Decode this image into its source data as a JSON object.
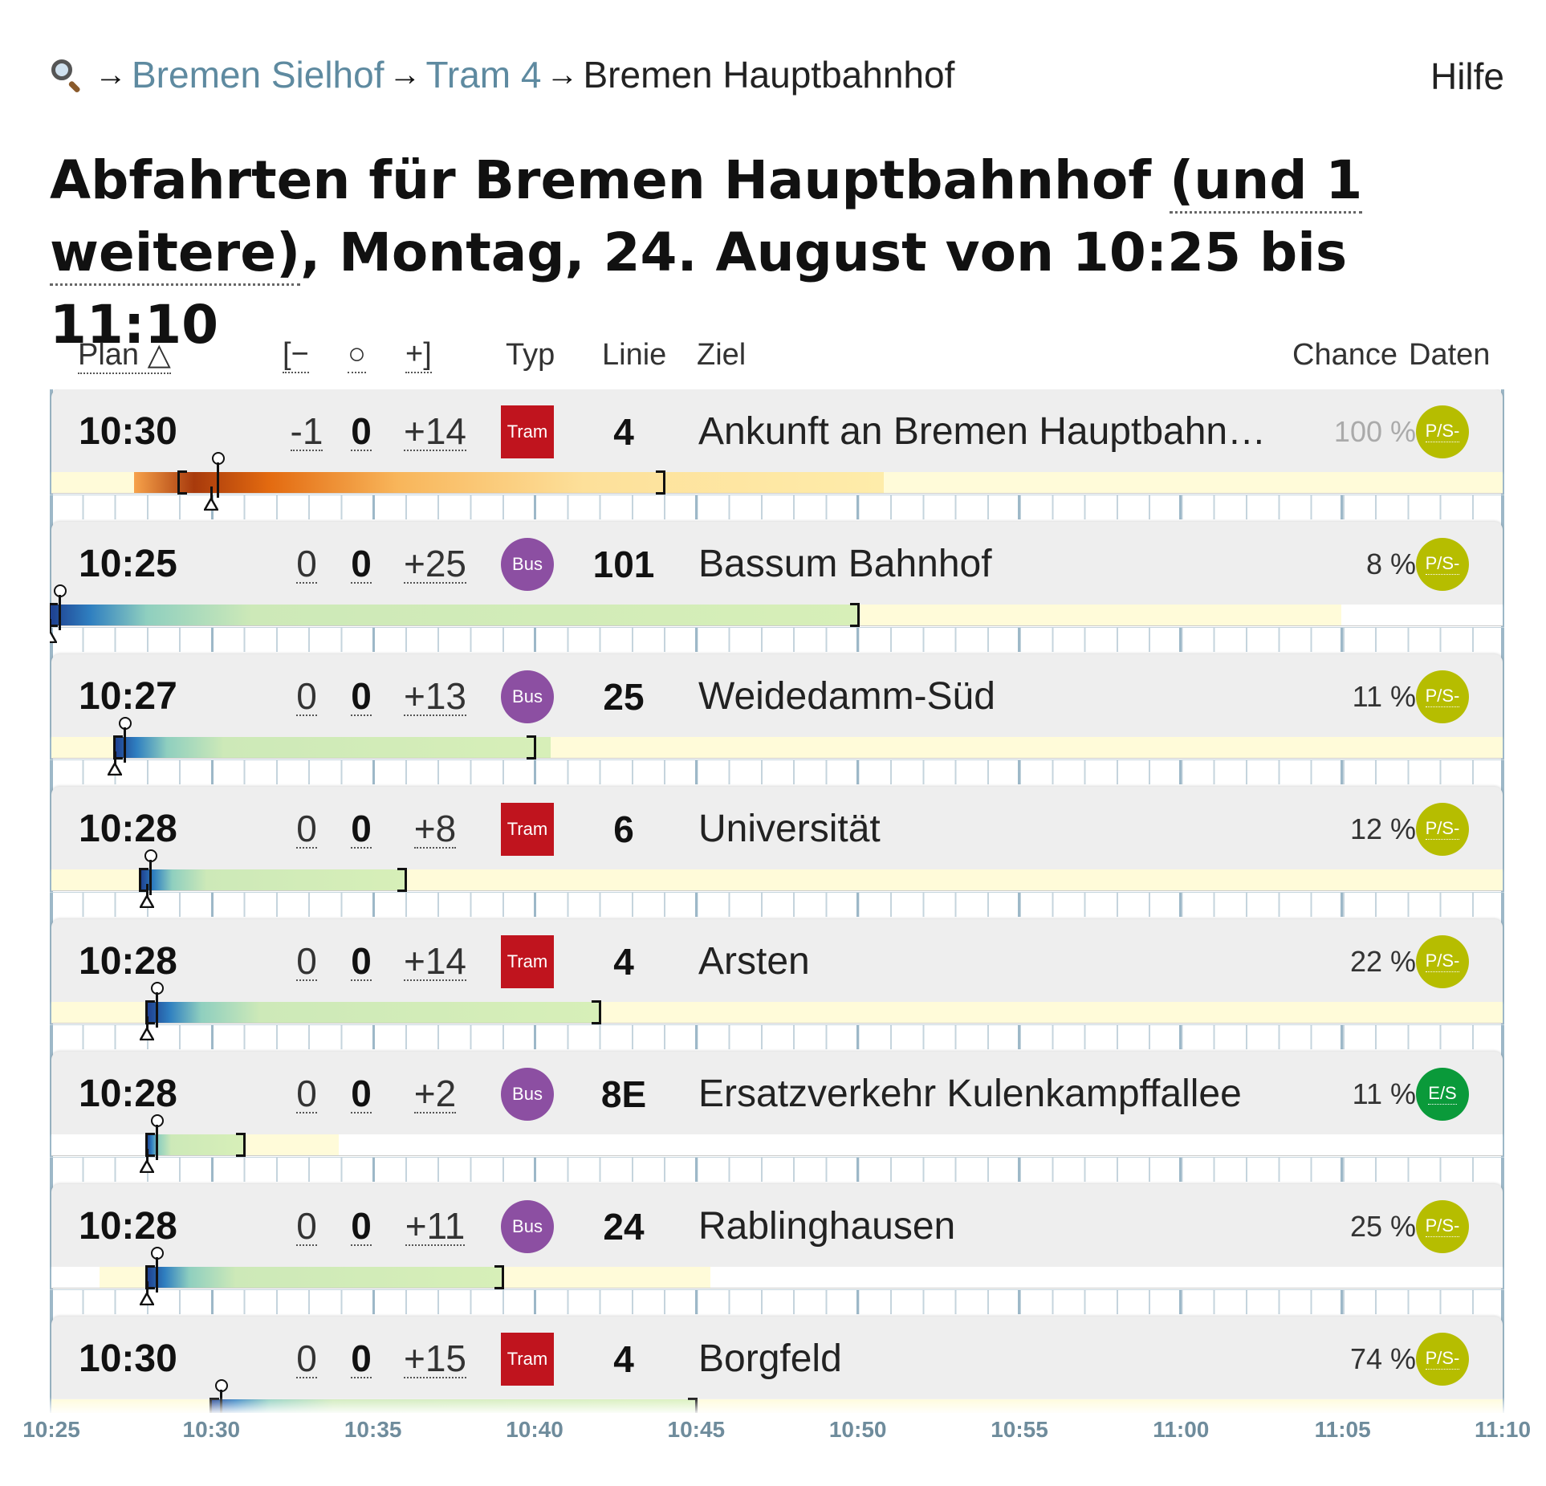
{
  "breadcrumb": {
    "items": [
      {
        "label": "Bremen Sielhof",
        "link": true
      },
      {
        "label": "Tram 4",
        "link": true
      },
      {
        "label": "Bremen Hauptbahnhof",
        "link": false
      }
    ],
    "arrow": "→",
    "help": "Hilfe"
  },
  "title": {
    "prefix": "Abfahrten für Bremen Hauptbahnhof ",
    "more_link": "(und 1 weitere)",
    "suffix": ", Montag, 24. August von 10:25 bis 11:10"
  },
  "columns": {
    "plan": "Plan △",
    "minus": "[−",
    "zero": "○",
    "plus": "+]",
    "typ": "Typ",
    "linie": "Linie",
    "ziel": "Ziel",
    "chance": "Chance",
    "daten": "Daten"
  },
  "rows": [
    {
      "plan": "10:30",
      "minus": "-1",
      "zero": "0",
      "plus": "+14",
      "type": "Tram",
      "line": "4",
      "dest": "Ankunft an Bremen Hauptbahnhof",
      "chance": "100 %",
      "data": "P/S-",
      "dataColor": "#b6bd00"
    },
    {
      "plan": "10:25",
      "minus": "0",
      "zero": "0",
      "plus": "+25",
      "type": "Bus",
      "line": "101",
      "dest": "Bassum Bahnhof",
      "chance": "8 %",
      "data": "P/S-",
      "dataColor": "#b6bd00"
    },
    {
      "plan": "10:27",
      "minus": "0",
      "zero": "0",
      "plus": "+13",
      "type": "Bus",
      "line": "25",
      "dest": "Weidedamm-Süd",
      "chance": "11 %",
      "data": "P/S-",
      "dataColor": "#b6bd00"
    },
    {
      "plan": "10:28",
      "minus": "0",
      "zero": "0",
      "plus": "+8",
      "type": "Tram",
      "line": "6",
      "dest": "Universität",
      "chance": "12 %",
      "data": "P/S-",
      "dataColor": "#b6bd00"
    },
    {
      "plan": "10:28",
      "minus": "0",
      "zero": "0",
      "plus": "+14",
      "type": "Tram",
      "line": "4",
      "dest": "Arsten",
      "chance": "22 %",
      "data": "P/S-",
      "dataColor": "#b6bd00"
    },
    {
      "plan": "10:28",
      "minus": "0",
      "zero": "0",
      "plus": "+2",
      "type": "Bus",
      "line": "8E",
      "dest": "Ersatzverkehr Kulenkampffallee",
      "chance": "11 %",
      "data": "E/S",
      "dataColor": "#0a9a3a"
    },
    {
      "plan": "10:28",
      "minus": "0",
      "zero": "0",
      "plus": "+11",
      "type": "Bus",
      "line": "24",
      "dest": "Rablinghausen",
      "chance": "25 %",
      "data": "P/S-",
      "dataColor": "#b6bd00"
    },
    {
      "plan": "10:30",
      "minus": "0",
      "zero": "0",
      "plus": "+15",
      "type": "Tram",
      "line": "4",
      "dest": "Borgfeld",
      "chance": "74 %",
      "data": "P/S-",
      "dataColor": "#b6bd00"
    }
  ],
  "axis": [
    "10:25",
    "10:30",
    "10:35",
    "10:40",
    "10:45",
    "10:50",
    "10:55",
    "11:00",
    "11:05",
    "11:10"
  ],
  "colors": {
    "link": "#5e8aa0",
    "tram": "#c0141e",
    "bus": "#8c4fa2",
    "data_ps": "#b6bd00",
    "data_es": "#0a9a3a",
    "axis": "#6f8c9c"
  }
}
